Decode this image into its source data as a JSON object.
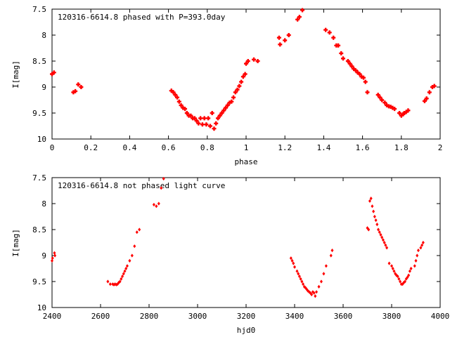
{
  "chart_data": [
    {
      "type": "scatter",
      "title": "120316-6614.8 phased with P=393.0day",
      "xlabel": "phase",
      "ylabel": "I[mag]",
      "xlim": [
        0,
        2
      ],
      "ylim": [
        10,
        7.5
      ],
      "y_inverted": true,
      "x_ticks": [
        0,
        0.2,
        0.4,
        0.6,
        0.8,
        1,
        1.2,
        1.4,
        1.6,
        1.8,
        2
      ],
      "x_tick_labels": [
        "0",
        "0.2",
        "0.4",
        "0.6",
        "0.8",
        "1",
        "1.2",
        "1.4",
        "1.6",
        "1.8",
        "2"
      ],
      "y_ticks": [
        7.5,
        8,
        8.5,
        9,
        9.5,
        10
      ],
      "y_tick_labels": [
        "7.5",
        "8",
        "8.5",
        "9",
        "9.5",
        "10"
      ],
      "grid": false,
      "marker": "plus",
      "color": "#ff0000",
      "series": [
        {
          "x": [
            0.0,
            0.01,
            0.11,
            0.12,
            0.135,
            0.15,
            0.615,
            0.625,
            0.635,
            0.645,
            0.655,
            0.665,
            0.675,
            0.685,
            0.695,
            0.705,
            0.715,
            0.725,
            0.735,
            0.745,
            0.755,
            0.765,
            0.775,
            0.785,
            0.795,
            0.805,
            0.815,
            0.825,
            0.835,
            0.845,
            0.855,
            0.865,
            0.875,
            0.885,
            0.895,
            0.905,
            0.915,
            0.925,
            0.935,
            0.945,
            0.955,
            0.965,
            0.975,
            0.985,
            0.995,
            1.0,
            1.01,
            1.04,
            1.06,
            1.17,
            1.175,
            1.2,
            1.22,
            1.265,
            1.275,
            1.29,
            1.41,
            1.43,
            1.45,
            1.465,
            1.475,
            1.49,
            1.5,
            1.525,
            1.535,
            1.545,
            1.555,
            1.565,
            1.575,
            1.585,
            1.595,
            1.605,
            1.615,
            1.625,
            1.68,
            1.69,
            1.7,
            1.715,
            1.725,
            1.735,
            1.745,
            1.755,
            1.765,
            1.79,
            1.8,
            1.81,
            1.815,
            1.825,
            1.835,
            1.92,
            1.93,
            1.945,
            1.96,
            1.97
          ],
          "y": [
            8.75,
            8.72,
            9.1,
            9.08,
            8.95,
            9.0,
            9.07,
            9.1,
            9.15,
            9.2,
            9.28,
            9.35,
            9.4,
            9.42,
            9.5,
            9.55,
            9.55,
            9.6,
            9.6,
            9.65,
            9.7,
            9.6,
            9.72,
            9.6,
            9.72,
            9.6,
            9.75,
            9.5,
            9.8,
            9.7,
            9.6,
            9.55,
            9.5,
            9.45,
            9.4,
            9.35,
            9.3,
            9.28,
            9.2,
            9.1,
            9.05,
            8.98,
            8.9,
            8.8,
            8.75,
            8.55,
            8.5,
            8.47,
            8.5,
            8.05,
            8.18,
            8.1,
            8.0,
            7.7,
            7.65,
            7.52,
            7.9,
            7.95,
            8.05,
            8.2,
            8.2,
            8.35,
            8.45,
            8.5,
            8.55,
            8.6,
            8.65,
            8.68,
            8.72,
            8.75,
            8.8,
            8.82,
            8.9,
            9.1,
            9.15,
            9.2,
            9.25,
            9.3,
            9.35,
            9.37,
            9.38,
            9.4,
            9.42,
            9.5,
            9.55,
            9.52,
            9.5,
            9.48,
            9.45,
            9.27,
            9.22,
            9.1,
            9.0,
            8.98
          ]
        }
      ]
    },
    {
      "type": "scatter",
      "title": "120316-6614.8 not phased light curve",
      "xlabel": "hjd0",
      "ylabel": "I[mag]",
      "xlim": [
        2400,
        4000
      ],
      "ylim": [
        10,
        7.5
      ],
      "y_inverted": true,
      "x_ticks": [
        2400,
        2600,
        2800,
        3000,
        3200,
        3400,
        3600,
        3800,
        4000
      ],
      "x_tick_labels": [
        "2400",
        "2600",
        "2800",
        "3000",
        "3200",
        "3400",
        "3600",
        "3800",
        "4000"
      ],
      "y_ticks": [
        7.5,
        8,
        8.5,
        9,
        9.5,
        10
      ],
      "y_tick_labels": [
        "7.5",
        "8",
        "8.5",
        "9",
        "9.5",
        "10"
      ],
      "grid": false,
      "marker": "diamond",
      "color": "#ff0000",
      "series": [
        {
          "x": [
            2400,
            2402,
            2410,
            2412,
            2630,
            2640,
            2650,
            2655,
            2660,
            2665,
            2670,
            2675,
            2680,
            2685,
            2690,
            2695,
            2700,
            2705,
            2710,
            2720,
            2730,
            2740,
            2750,
            2760,
            2820,
            2830,
            2840,
            2850,
            2860,
            2870,
            3385,
            3390,
            3395,
            3400,
            3410,
            3415,
            3420,
            3425,
            3430,
            3435,
            3440,
            3445,
            3450,
            3455,
            3460,
            3465,
            3470,
            3475,
            3480,
            3485,
            3490,
            3500,
            3510,
            3520,
            3530,
            3550,
            3555,
            3700,
            3705,
            3710,
            3715,
            3720,
            3725,
            3730,
            3735,
            3740,
            3745,
            3750,
            3755,
            3760,
            3765,
            3770,
            3775,
            3780,
            3790,
            3800,
            3805,
            3810,
            3815,
            3820,
            3825,
            3830,
            3835,
            3840,
            3845,
            3850,
            3855,
            3860,
            3865,
            3870,
            3875,
            3880,
            3895,
            3900,
            3905,
            3910,
            3920,
            3925,
            3930
          ],
          "y": [
            9.1,
            9.05,
            8.95,
            9.0,
            9.5,
            9.55,
            9.55,
            9.56,
            9.55,
            9.56,
            9.55,
            9.52,
            9.5,
            9.45,
            9.4,
            9.35,
            9.3,
            9.25,
            9.2,
            9.1,
            9.0,
            8.82,
            8.55,
            8.5,
            8.02,
            8.05,
            8.0,
            7.7,
            7.52,
            7.45,
            9.05,
            9.1,
            9.15,
            9.22,
            9.3,
            9.35,
            9.4,
            9.45,
            9.5,
            9.55,
            9.6,
            9.62,
            9.65,
            9.68,
            9.7,
            9.72,
            9.75,
            9.7,
            9.72,
            9.78,
            9.7,
            9.6,
            9.5,
            9.35,
            9.2,
            9.0,
            8.9,
            8.47,
            8.5,
            7.95,
            7.9,
            8.05,
            8.15,
            8.25,
            8.32,
            8.4,
            8.5,
            8.55,
            8.6,
            8.65,
            8.7,
            8.75,
            8.8,
            8.85,
            9.15,
            9.2,
            9.25,
            9.3,
            9.35,
            9.38,
            9.4,
            9.45,
            9.5,
            9.55,
            9.55,
            9.52,
            9.5,
            9.45,
            9.42,
            9.38,
            9.3,
            9.25,
            9.2,
            9.1,
            9.0,
            8.9,
            8.85,
            8.8,
            8.75
          ]
        }
      ]
    }
  ]
}
